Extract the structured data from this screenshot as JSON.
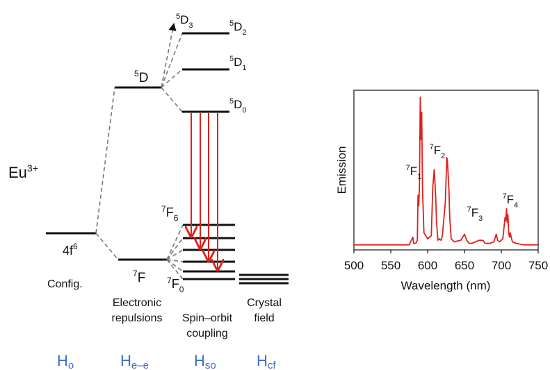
{
  "diagram": {
    "ion": {
      "base": "Eu",
      "sup": "3+"
    },
    "config_level": {
      "text": "4f",
      "sup": "6"
    },
    "free_ion_levels": {
      "upper": {
        "sup": "5",
        "base": "D"
      },
      "lower": {
        "sup": "7",
        "base": "F"
      }
    },
    "d_multiplet": [
      {
        "sup": "5",
        "base": "D",
        "sub": "3"
      },
      {
        "sup": "5",
        "base": "D",
        "sub": "2"
      },
      {
        "sup": "5",
        "base": "D",
        "sub": "1"
      },
      {
        "sup": "5",
        "base": "D",
        "sub": "0"
      }
    ],
    "f_multiplet": {
      "top": {
        "sup": "7",
        "base": "F",
        "sub": "6"
      },
      "bottom": {
        "sup": "7",
        "base": "F",
        "sub": "0"
      }
    },
    "stage_labels": [
      {
        "line1": "Config.",
        "line2": ""
      },
      {
        "line1": "Electronic",
        "line2": "repulsions"
      },
      {
        "line1": "Spin–orbit",
        "line2": "coupling"
      },
      {
        "line1": "Crystal",
        "line2": "field"
      }
    ],
    "hamiltonians": [
      {
        "base": "H",
        "sub": "o"
      },
      {
        "base": "H",
        "sub": "e–e"
      },
      {
        "base": "H",
        "sub": "so"
      },
      {
        "base": "H",
        "sub": "cf"
      }
    ],
    "colors": {
      "transition_arrows": "#e0201b",
      "hamiltonian_text": "#3b6fc4",
      "levels": "#111111"
    }
  },
  "chart_data": {
    "type": "line",
    "title": "",
    "xlabel": "Wavelength (nm)",
    "ylabel": "Emission",
    "xlim": [
      500,
      750
    ],
    "xticks": [
      500,
      550,
      600,
      650,
      700,
      750
    ],
    "y_ticks_shown": false,
    "line_color": "#e0201b",
    "series": [
      {
        "x": [
          500,
          560,
          575,
          579,
          580,
          581,
          584,
          586,
          587,
          588,
          589,
          590,
          591,
          592,
          593,
          595,
          600,
          605,
          607,
          609,
          610,
          611,
          612,
          614,
          616,
          618,
          620,
          624,
          626,
          627,
          628,
          629,
          630,
          632,
          636,
          645,
          650,
          653,
          656,
          660,
          665,
          670,
          675,
          678,
          685,
          690,
          693,
          695,
          698,
          702,
          704,
          705,
          706,
          707,
          708,
          709,
          710,
          711,
          712,
          715,
          720,
          730,
          750
        ],
        "y": [
          0.02,
          0.02,
          0.02,
          0.06,
          0.07,
          0.03,
          0.03,
          0.05,
          0.35,
          0.28,
          0.42,
          1.0,
          0.72,
          0.9,
          0.4,
          0.1,
          0.06,
          0.08,
          0.4,
          0.52,
          0.43,
          0.33,
          0.18,
          0.05,
          0.06,
          0.05,
          0.08,
          0.3,
          0.6,
          0.57,
          0.47,
          0.38,
          0.2,
          0.06,
          0.04,
          0.05,
          0.09,
          0.05,
          0.03,
          0.03,
          0.04,
          0.05,
          0.05,
          0.03,
          0.03,
          0.04,
          0.09,
          0.05,
          0.04,
          0.06,
          0.15,
          0.2,
          0.18,
          0.26,
          0.17,
          0.22,
          0.1,
          0.07,
          0.1,
          0.04,
          0.03,
          0.02,
          0.02
        ]
      }
    ],
    "peak_annotations": [
      {
        "sup": "7",
        "base": "F",
        "sub": "1",
        "x": 578
      },
      {
        "sup": "7",
        "base": "F",
        "sub": "2",
        "x": 610
      },
      {
        "sup": "7",
        "base": "F",
        "sub": "3",
        "x": 661
      },
      {
        "sup": "7",
        "base": "F",
        "sub": "4",
        "x": 709
      }
    ]
  }
}
